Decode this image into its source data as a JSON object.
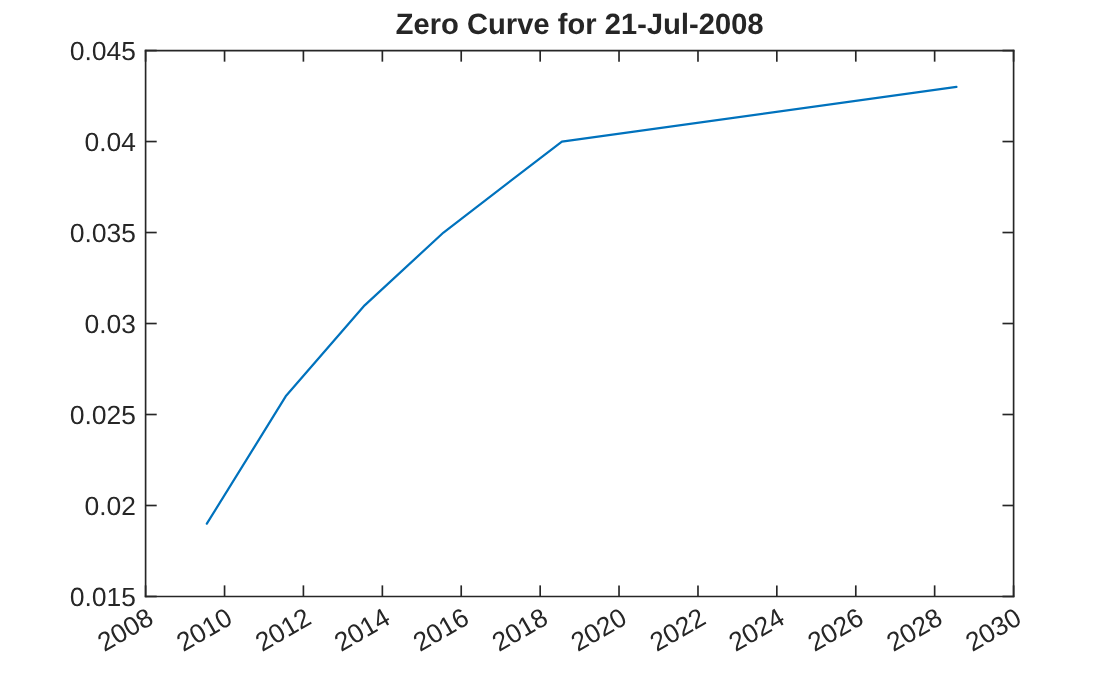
{
  "chart_data": {
    "type": "line",
    "title": "Zero Curve for 21-Jul-2008",
    "x": [
      "2009-07-21",
      "2011-07-21",
      "2013-07-21",
      "2015-07-21",
      "2018-07-21",
      "2028-07-21"
    ],
    "series": [
      {
        "color": "#0072bd",
        "values": [
          0.019,
          0.026,
          0.031,
          0.035,
          0.04,
          0.043
        ]
      }
    ],
    "xlim": [
      "2008",
      "2030"
    ],
    "xticks": [
      "2008",
      "2010",
      "2012",
      "2014",
      "2016",
      "2018",
      "2020",
      "2022",
      "2024",
      "2026",
      "2028",
      "2030"
    ],
    "ylim": [
      0.015,
      0.045
    ],
    "yticks": [
      0.015,
      0.02,
      0.025,
      0.03,
      0.035,
      0.04,
      0.045
    ],
    "grid": false,
    "legend": false,
    "marker": "none",
    "line_style": "solid"
  }
}
